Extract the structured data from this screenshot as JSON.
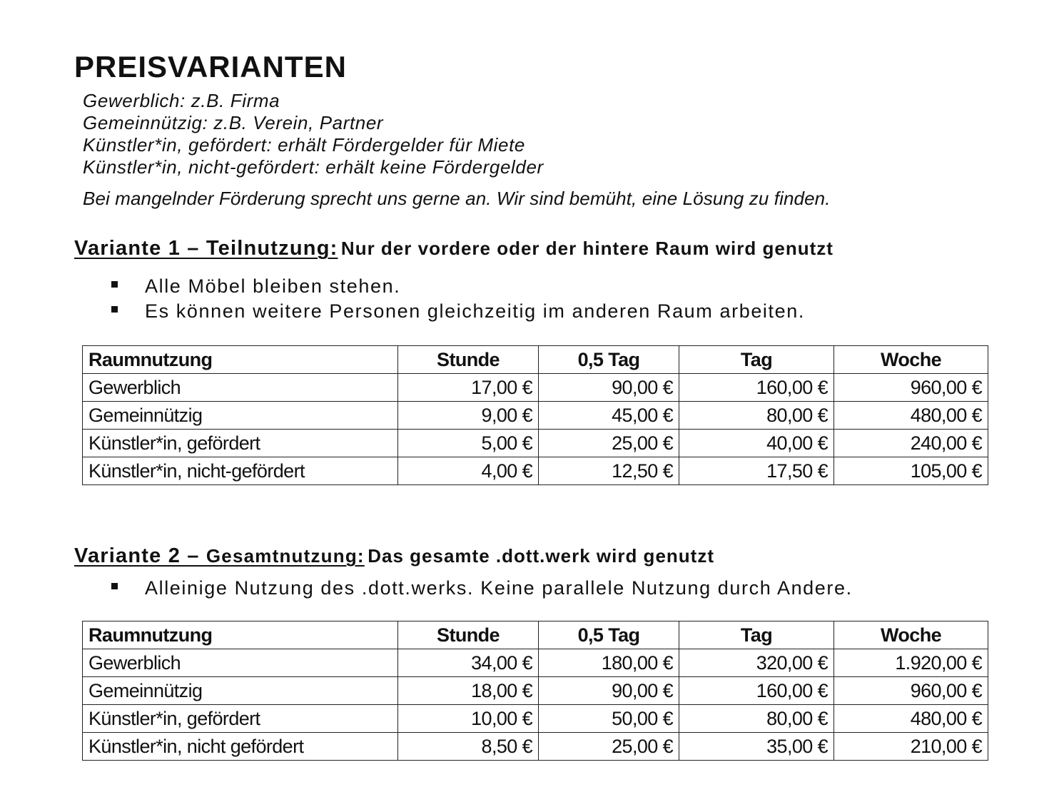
{
  "title": "PREISVARIANTEN",
  "definitions": [
    "Gewerblich: z.B. Firma",
    "Gemeinnützig: z.B. Verein, Partner",
    "Künstler*in, gefördert: erhält Fördergelder für Miete",
    "Künstler*in, nicht-gefördert: erhält keine Fördergelder"
  ],
  "note": "Bei mangelnder Förderung sprecht uns gerne an. Wir sind bemüht, eine Lösung zu finden.",
  "variant1": {
    "heading_prefix": "Variante 1 – Teilnutzung:",
    "heading_rest": "Nur der vordere oder der hintere Raum wird genutzt",
    "bullets": [
      "Alle Möbel bleiben stehen.",
      "Es können weitere Personen gleichzeitig im anderen Raum arbeiten."
    ],
    "table": {
      "headers": [
        "Raumnutzung",
        "Stunde",
        "0,5 Tag",
        "Tag",
        "Woche"
      ],
      "rows": [
        [
          "Gewerblich",
          "17,00 €",
          "90,00 €",
          "160,00 €",
          "960,00 €"
        ],
        [
          "Gemeinnützig",
          "9,00 €",
          "45,00 €",
          "80,00 €",
          "480,00 €"
        ],
        [
          "Künstler*in, gefördert",
          "5,00 €",
          "25,00 €",
          "40,00 €",
          "240,00 €"
        ],
        [
          "Künstler*in, nicht-gefördert",
          "4,00 €",
          "12,50 €",
          "17,50 €",
          "105,00 €"
        ]
      ]
    }
  },
  "variant2": {
    "heading_prefix_a": "Variante 2 – ",
    "heading_prefix_b": "Gesamtnutzung:",
    "heading_rest": "Das gesamte .dott.werk wird genutzt",
    "bullets": [
      "Alleinige Nutzung des .dott.werks. Keine parallele Nutzung durch Andere."
    ],
    "table": {
      "headers": [
        "Raumnutzung",
        "Stunde",
        "0,5 Tag",
        "Tag",
        "Woche"
      ],
      "rows": [
        [
          "Gewerblich",
          "34,00 €",
          "180,00 €",
          "320,00 €",
          "1.920,00 €"
        ],
        [
          "Gemeinnützig",
          "18,00 €",
          "90,00 €",
          "160,00 €",
          "960,00 €"
        ],
        [
          "Künstler*in, gefördert",
          "10,00 €",
          "50,00 €",
          "80,00 €",
          "480,00 €"
        ],
        [
          "Künstler*in, nicht gefördert",
          "8,50 €",
          "25,00 €",
          "35,00 €",
          "210,00 €"
        ]
      ]
    }
  }
}
